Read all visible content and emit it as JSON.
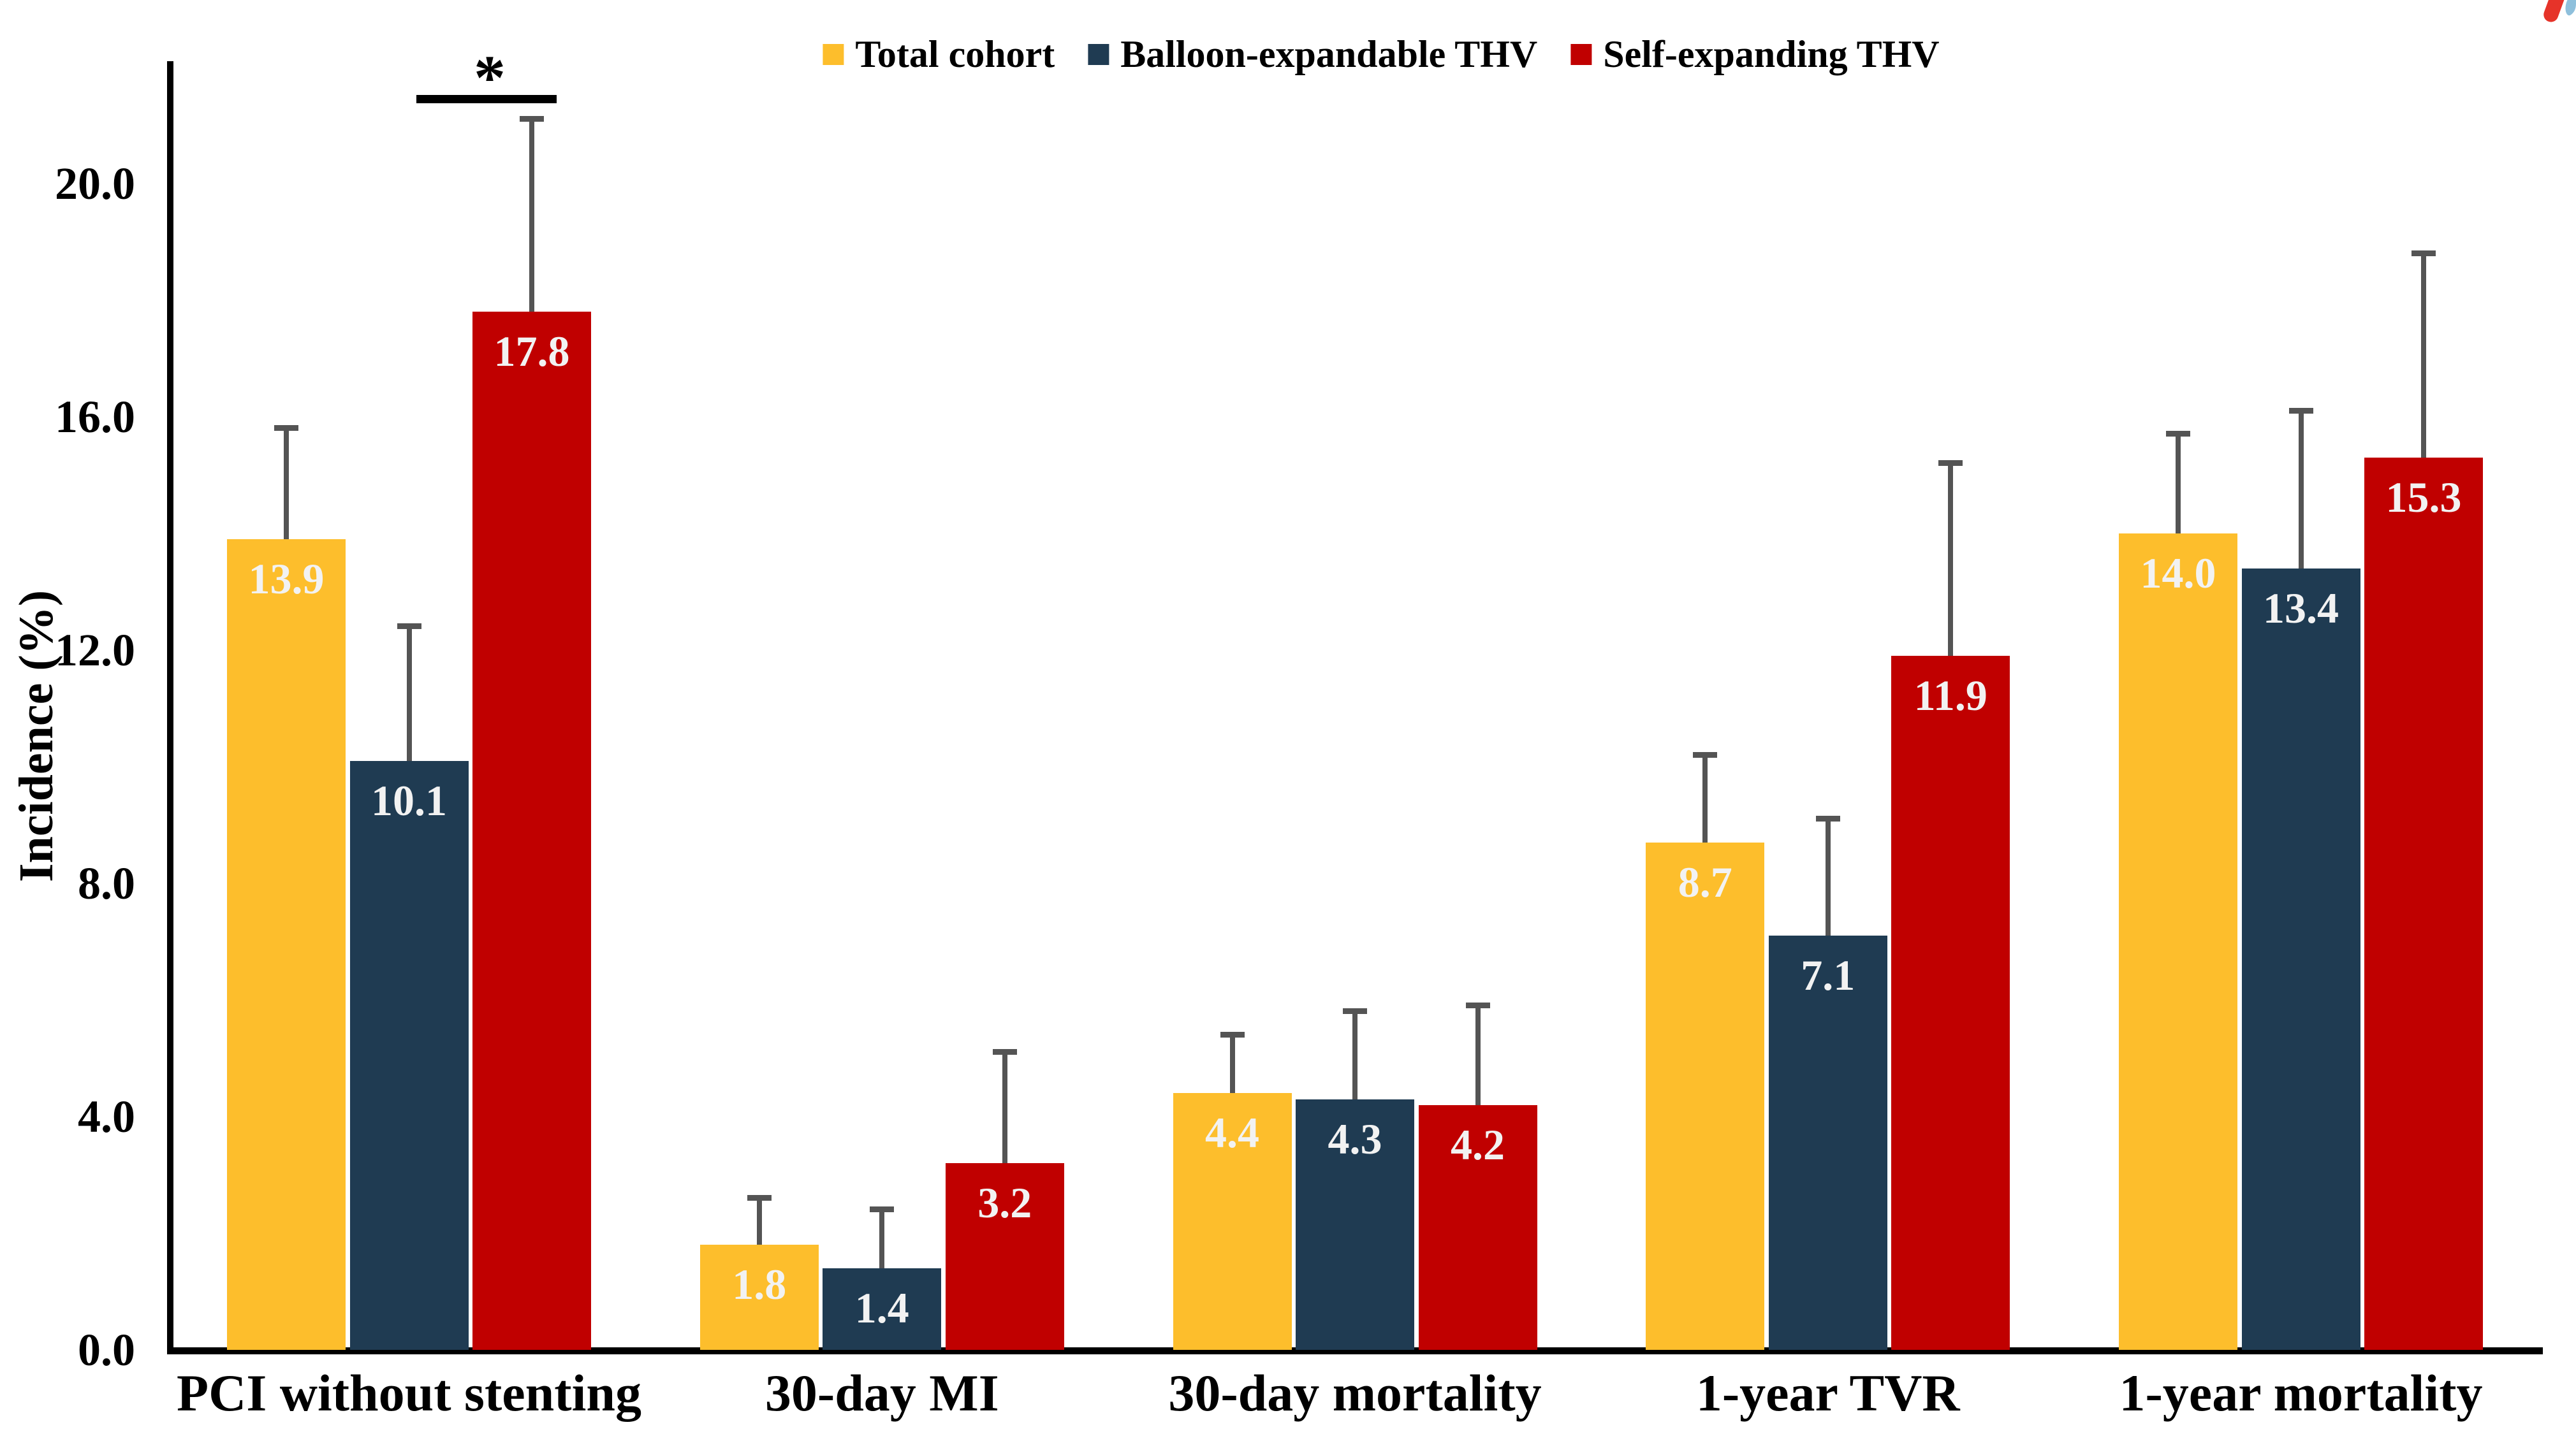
{
  "chart_data": {
    "type": "bar",
    "title": "",
    "ylabel": "Incidence (%)",
    "ylim": [
      0,
      22
    ],
    "grid": false,
    "legend_position": "top-center",
    "yticks": [
      {
        "label": "0.0",
        "value": 0
      },
      {
        "label": "4.0",
        "value": 4
      },
      {
        "label": "8.0",
        "value": 8
      },
      {
        "label": "12.0",
        "value": 12
      },
      {
        "label": "16.0",
        "value": 16
      },
      {
        "label": "20.0",
        "value": 20
      }
    ],
    "categories": [
      "PCI without stenting",
      "30-day MI",
      "30-day mortality",
      "1-year TVR",
      "1-year mortality"
    ],
    "series": [
      {
        "name": "Total cohort",
        "color": "#FDBE2C",
        "values": [
          13.9,
          1.8,
          4.4,
          8.7,
          14.0
        ],
        "error_bar_tops": [
          15.8,
          2.6,
          5.4,
          10.2,
          15.7
        ]
      },
      {
        "name": "Balloon-expandable THV",
        "color": "#1F3B52",
        "values": [
          10.1,
          1.4,
          4.3,
          7.1,
          13.4
        ],
        "error_bar_tops": [
          12.4,
          2.4,
          5.8,
          9.1,
          16.1
        ]
      },
      {
        "name": "Self-expanding THV",
        "color": "#C00000",
        "values": [
          17.8,
          3.2,
          4.2,
          11.9,
          15.3
        ],
        "error_bar_tops": [
          21.1,
          5.1,
          5.9,
          15.2,
          18.8
        ]
      }
    ],
    "value_label_color": "#F2F2F2",
    "error_bar_color": "#545454",
    "significance": {
      "label": "*",
      "category": "PCI without stenting",
      "between": [
        "Balloon-expandable THV",
        "Self-expanding THV"
      ]
    }
  },
  "logo": {
    "name": "publisher-mark",
    "red": "#E63329",
    "blue": "#8FC0DC"
  }
}
